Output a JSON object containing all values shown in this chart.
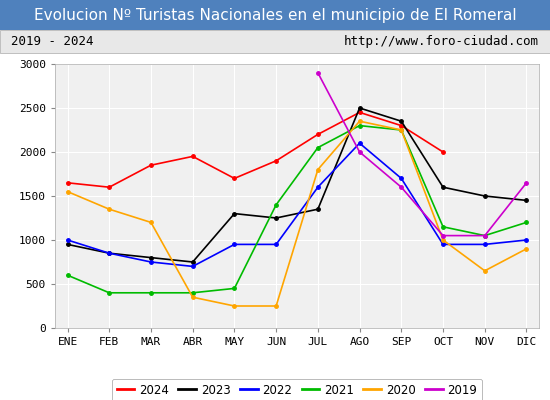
{
  "title": "Evolucion Nº Turistas Nacionales en el municipio de El Romeral",
  "subtitle_left": "2019 - 2024",
  "subtitle_right": "http://www.foro-ciudad.com",
  "months": [
    "ENE",
    "FEB",
    "MAR",
    "ABR",
    "MAY",
    "JUN",
    "JUL",
    "AGO",
    "SEP",
    "OCT",
    "NOV",
    "DIC"
  ],
  "ylim": [
    0,
    3000
  ],
  "yticks": [
    0,
    500,
    1000,
    1500,
    2000,
    2500,
    3000
  ],
  "series": {
    "2024": {
      "color": "#ff0000",
      "data": [
        1650,
        1600,
        1850,
        1950,
        1700,
        1900,
        2200,
        2450,
        2300,
        2000,
        null,
        null
      ]
    },
    "2023": {
      "color": "#000000",
      "data": [
        950,
        850,
        800,
        750,
        1300,
        1250,
        1350,
        2500,
        2350,
        1600,
        1500,
        1450
      ]
    },
    "2022": {
      "color": "#0000ff",
      "data": [
        1000,
        850,
        750,
        700,
        950,
        950,
        1600,
        2100,
        1700,
        950,
        950,
        1000
      ]
    },
    "2021": {
      "color": "#00bb00",
      "data": [
        600,
        400,
        400,
        400,
        450,
        1400,
        2050,
        2300,
        2250,
        1150,
        1050,
        1200
      ]
    },
    "2020": {
      "color": "#ffa500",
      "data": [
        1550,
        1350,
        1200,
        350,
        250,
        250,
        1800,
        2350,
        2250,
        1000,
        650,
        900
      ]
    },
    "2019": {
      "color": "#cc00cc",
      "data": [
        null,
        null,
        null,
        null,
        null,
        null,
        2900,
        2000,
        1600,
        1050,
        1050,
        1650
      ]
    }
  },
  "legend_order": [
    "2024",
    "2023",
    "2022",
    "2021",
    "2020",
    "2019"
  ],
  "title_bg_color": "#4f81bd",
  "title_text_color": "#ffffff",
  "subtitle_bg_color": "#e8e8e8",
  "plot_bg_color": "#f0f0f0",
  "grid_color": "#ffffff",
  "title_fontsize": 11,
  "subtitle_fontsize": 9,
  "tick_fontsize": 8,
  "legend_fontsize": 8.5
}
